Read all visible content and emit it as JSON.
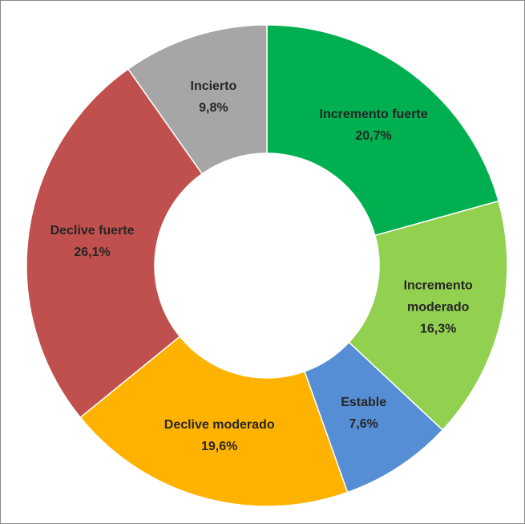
{
  "chart_data": {
    "type": "donut",
    "categories": [
      "Incremento fuerte",
      "Incremento moderado",
      "Estable",
      "Declive moderado",
      "Declive fuerte",
      "Incierto"
    ],
    "values": [
      20.7,
      16.3,
      7.6,
      19.6,
      26.1,
      9.8
    ],
    "value_labels": [
      "20,7%",
      "16,3%",
      "7,6%",
      "19,6%",
      "26,1%",
      "9,8%"
    ],
    "colors": [
      "#00b050",
      "#92d050",
      "#558ed5",
      "#ffb300",
      "#c0504d",
      "#a6a6a6"
    ]
  }
}
